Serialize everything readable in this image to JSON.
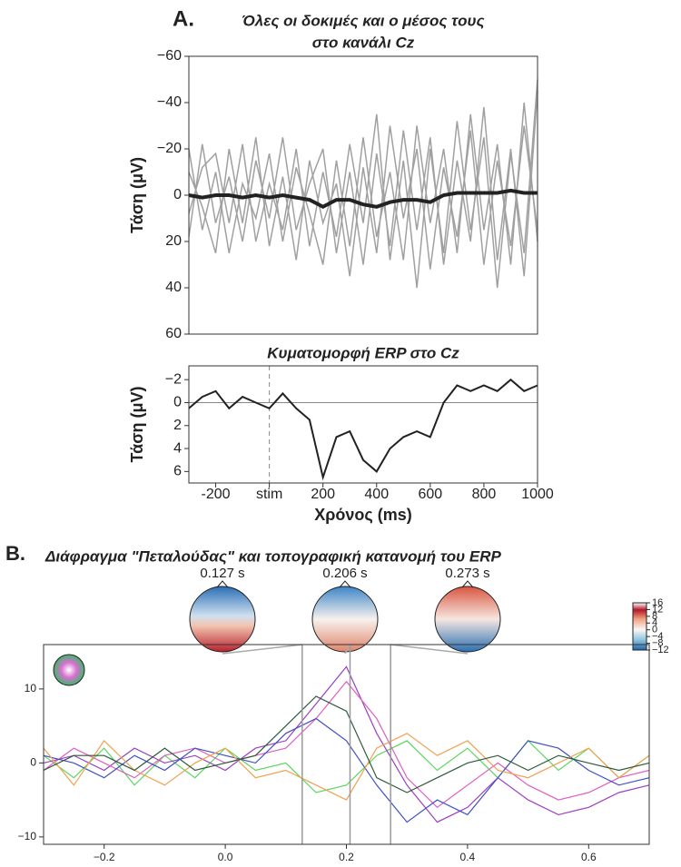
{
  "chart_data": [
    {
      "type": "line",
      "panel_label": "A.",
      "title": [
        "Όλες οι δοκιμές και ο μέσος τους",
        "στο κανάλι Cz"
      ],
      "ylabel": "Τάση (μV)",
      "x": [
        -300,
        -250,
        -200,
        -150,
        -100,
        -50,
        0,
        50,
        100,
        150,
        200,
        250,
        300,
        350,
        400,
        450,
        500,
        550,
        600,
        650,
        700,
        750,
        800,
        850,
        900,
        950,
        1000
      ],
      "xlim": [
        -300,
        1000
      ],
      "ylim": [
        60,
        -60
      ],
      "yticks": [
        {
          "value": -60,
          "label": "−60"
        },
        {
          "value": -40,
          "label": "−40"
        },
        {
          "value": -20,
          "label": "−20"
        },
        0,
        20,
        40,
        60
      ],
      "series": [
        {
          "color": "#a0a0a0",
          "values": [
            -20,
            15,
            -10,
            25,
            -5,
            10,
            -18,
            20,
            -12,
            8,
            30,
            -15,
            22,
            -25,
            18,
            -10,
            28,
            -30,
            12,
            -20,
            25,
            -35,
            15,
            -22,
            30,
            -40,
            20
          ]
        },
        {
          "color": "#a0a0a0",
          "values": [
            18,
            -22,
            12,
            -8,
            20,
            -15,
            10,
            -25,
            15,
            -5,
            -20,
            25,
            -10,
            30,
            -18,
            22,
            -28,
            15,
            -25,
            30,
            -15,
            20,
            -38,
            28,
            -20,
            35,
            -45
          ]
        },
        {
          "color": "#a0a0a0",
          "values": [
            -10,
            5,
            25,
            -20,
            12,
            -25,
            22,
            -8,
            28,
            -15,
            12,
            -5,
            35,
            -12,
            25,
            -30,
            10,
            -20,
            32,
            -12,
            18,
            -28,
            30,
            -15,
            22,
            -30,
            15
          ]
        },
        {
          "color": "#a0a0a0",
          "values": [
            8,
            -12,
            -18,
            12,
            -22,
            20,
            -5,
            15,
            -20,
            22,
            -10,
            18,
            -22,
            12,
            -35,
            28,
            -15,
            40,
            -20,
            25,
            -32,
            15,
            -25,
            40,
            -18,
            25,
            -50
          ]
        },
        {
          "color": "#222222",
          "values": [
            0,
            1,
            0,
            0,
            1,
            0,
            1,
            0,
            1,
            2,
            5,
            2,
            2,
            4,
            5,
            3,
            2,
            2,
            3,
            0,
            -1,
            -1,
            -1,
            -1,
            -2,
            -1,
            -1
          ]
        }
      ]
    },
    {
      "type": "line",
      "title": [
        "Κυματομορφή ERP στο Cz"
      ],
      "ylabel": "Τάση (μV)",
      "xlabel": "Χρόνος (ms)",
      "x": [
        -300,
        -250,
        -200,
        -150,
        -100,
        -50,
        0,
        50,
        100,
        150,
        200,
        250,
        300,
        350,
        400,
        450,
        500,
        550,
        600,
        650,
        700,
        750,
        800,
        850,
        900,
        950,
        1000
      ],
      "xlim": [
        -300,
        1000
      ],
      "ylim": [
        7,
        -3.2
      ],
      "hline": 0,
      "vline": 0,
      "xticks": [
        -200,
        {
          "value": 0,
          "label": "stim"
        },
        200,
        400,
        600,
        800,
        1000
      ],
      "yticks": [
        {
          "value": -2,
          "label": "−2"
        },
        0,
        2,
        4,
        6
      ],
      "series": [
        {
          "color": "#222222",
          "values": [
            0.5,
            -0.5,
            -1,
            0.5,
            -0.5,
            0,
            0.5,
            -0.8,
            0.5,
            1.5,
            6.5,
            3,
            2.5,
            5,
            6,
            4,
            3,
            2.5,
            3,
            0,
            -1.5,
            -1,
            -1.5,
            -1,
            -2,
            -1,
            -1.5
          ]
        }
      ]
    },
    {
      "type": "line",
      "panel_label": "B.",
      "title": [
        "Διάφραγμα \"Πεταλούδας\" και τοπογραφική κατανομή του ERP"
      ],
      "x": [
        -0.3,
        -0.25,
        -0.2,
        -0.15,
        -0.1,
        -0.05,
        0,
        0.05,
        0.1,
        0.15,
        0.2,
        0.25,
        0.3,
        0.35,
        0.4,
        0.45,
        0.5,
        0.55,
        0.6,
        0.65,
        0.7
      ],
      "xlim": [
        -0.3,
        0.7
      ],
      "ylim": [
        -11,
        16
      ],
      "xticks": [
        {
          "value": -0.2,
          "label": "−0.2"
        },
        {
          "value": 0,
          "label": "0.0"
        },
        0.2,
        0.4,
        0.6
      ],
      "yticks": [
        {
          "value": -10,
          "label": "−10"
        },
        0,
        10
      ],
      "topomap_times": [
        {
          "value": 0.127,
          "label": "0.127 s"
        },
        {
          "value": 0.206,
          "label": "0.206 s"
        },
        {
          "value": 0.273,
          "label": "0.273 s"
        }
      ],
      "colorbar": {
        "lim": [
          -12,
          16
        ],
        "ticks": [
          16,
          12,
          8,
          4,
          0,
          {
            "value": -4,
            "label": "−4"
          },
          {
            "value": -8,
            "label": "−8"
          },
          {
            "value": -12,
            "label": "−12"
          }
        ]
      },
      "series": [
        {
          "color": "#5cd65c",
          "values": [
            1,
            -2,
            2,
            -3,
            1,
            -2,
            2,
            -1,
            0,
            -4,
            -3,
            1,
            3,
            -1,
            2,
            -2,
            3,
            -1,
            2,
            -2,
            1
          ]
        },
        {
          "color": "#9b3fc4",
          "values": [
            0,
            1,
            -1,
            2,
            0,
            1,
            -1,
            2,
            3,
            8,
            13,
            4,
            -3,
            -8,
            -6,
            -2,
            -5,
            -7,
            -6,
            -4,
            -3
          ]
        },
        {
          "color": "#e05fbf",
          "values": [
            -1,
            2,
            0,
            -2,
            1,
            2,
            0,
            1,
            2,
            6,
            11,
            6,
            -2,
            -6,
            -3,
            0,
            -3,
            -5,
            -4,
            -2,
            -1
          ]
        },
        {
          "color": "#3f4fc4",
          "values": [
            1,
            0,
            -2,
            1,
            -1,
            2,
            1,
            0,
            4,
            6,
            3,
            -3,
            -8,
            -5,
            -7,
            -2,
            3,
            2,
            -1,
            -3,
            -2
          ]
        },
        {
          "color": "#f0a050",
          "values": [
            2,
            -3,
            3,
            -1,
            -3,
            0,
            2,
            -2,
            -1,
            -3,
            -5,
            2,
            4,
            1,
            3,
            -1,
            -2,
            0,
            2,
            -2,
            1
          ]
        },
        {
          "color": "#2d5a3a",
          "values": [
            -1,
            1,
            1,
            -1,
            2,
            -1,
            0,
            1,
            5,
            9,
            7,
            -2,
            -4,
            -2,
            0,
            1,
            -1,
            1,
            0,
            -1,
            0
          ]
        }
      ]
    }
  ]
}
